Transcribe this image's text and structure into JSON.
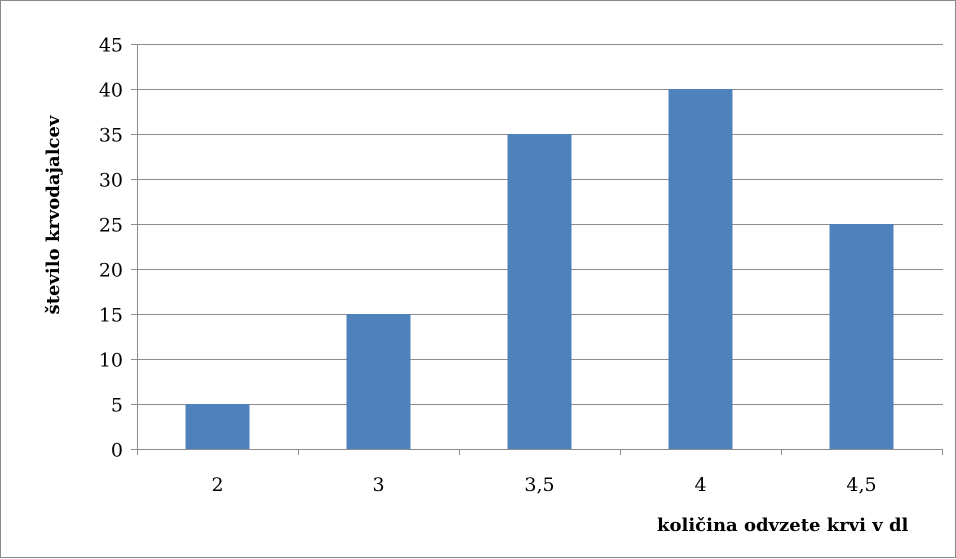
{
  "chart_data": {
    "type": "bar",
    "categories": [
      "2",
      "3",
      "3,5",
      "4",
      "4,5"
    ],
    "values": [
      5,
      15,
      35,
      40,
      25
    ],
    "title": "",
    "xlabel": "količina odvzete krvi v dl",
    "ylabel": "število krvodajalcev",
    "ylim": [
      0,
      45
    ],
    "yticks": [
      0,
      5,
      10,
      15,
      20,
      25,
      30,
      35,
      40,
      45
    ],
    "grid": true,
    "legend": "none",
    "bar_color": "#4f81bd",
    "grid_color": "#8c8c8c"
  }
}
